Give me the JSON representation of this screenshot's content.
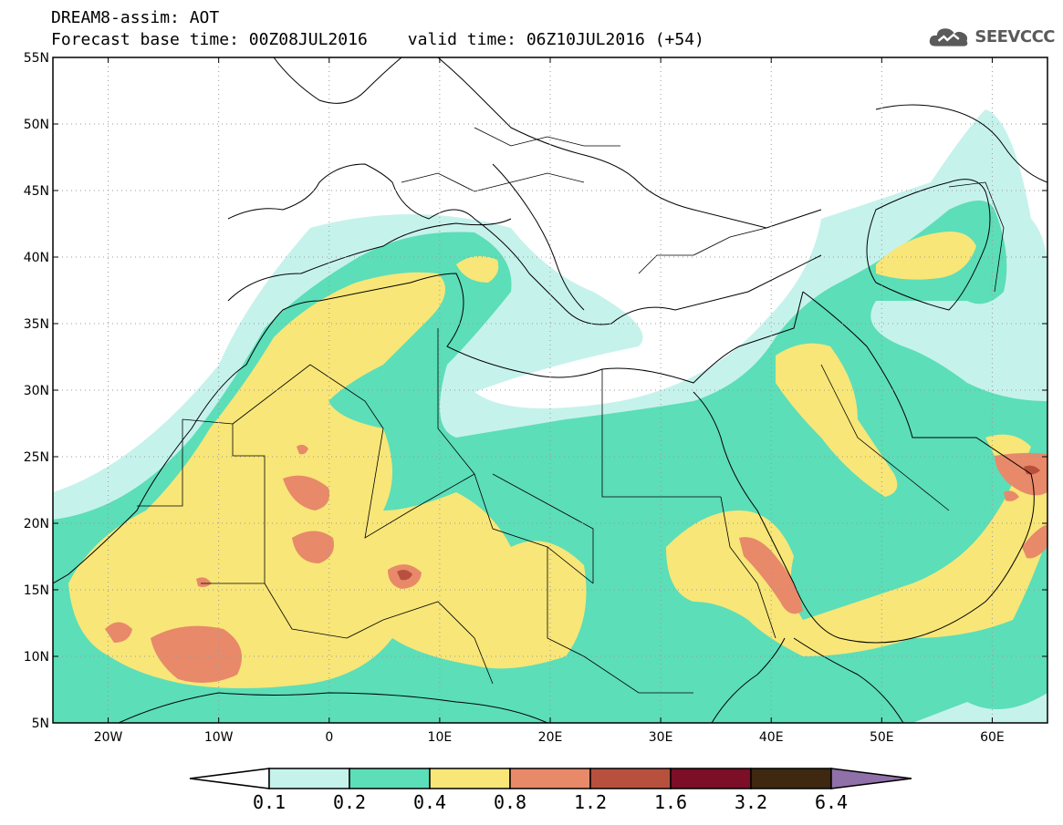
{
  "title": {
    "line1": "DREAM8-assim: AOT",
    "forecast_base": "Forecast base time: 00Z08JUL2016",
    "valid_time": "valid time: 06Z10JUL2016 (+54)"
  },
  "logo": {
    "text": "SEEVCCC",
    "icon": "cloud-icon",
    "color": "#5a5a5a"
  },
  "map": {
    "lon_range": [
      -25,
      65
    ],
    "lat_range": [
      5,
      55
    ],
    "lat_ticks": [
      {
        "value": 55,
        "label": "55N"
      },
      {
        "value": 50,
        "label": "50N"
      },
      {
        "value": 45,
        "label": "45N"
      },
      {
        "value": 40,
        "label": "40N"
      },
      {
        "value": 35,
        "label": "35N"
      },
      {
        "value": 30,
        "label": "30N"
      },
      {
        "value": 25,
        "label": "25N"
      },
      {
        "value": 20,
        "label": "20N"
      },
      {
        "value": 15,
        "label": "15N"
      },
      {
        "value": 10,
        "label": "10N"
      },
      {
        "value": 5,
        "label": "5N"
      }
    ],
    "lon_ticks": [
      {
        "value": -20,
        "label": "20W"
      },
      {
        "value": -10,
        "label": "10W"
      },
      {
        "value": 0,
        "label": "0"
      },
      {
        "value": 10,
        "label": "10E"
      },
      {
        "value": 20,
        "label": "20E"
      },
      {
        "value": 30,
        "label": "30E"
      },
      {
        "value": 40,
        "label": "40E"
      },
      {
        "value": 50,
        "label": "50E"
      },
      {
        "value": 60,
        "label": "60E"
      }
    ],
    "gridlines": true
  },
  "colorbar": {
    "labels": [
      "0.1",
      "0.2",
      "0.4",
      "0.8",
      "1.2",
      "1.6",
      "3.2",
      "6.4"
    ],
    "colors": [
      "#c6f2ec",
      "#5cdeb8",
      "#f8e678",
      "#e8896a",
      "#b8503e",
      "#7c0e28",
      "#3e2810"
    ],
    "under_color": "#ffffff",
    "over_color": "#9070a8"
  },
  "fill_colors": {
    "c1": "#c6f2ec",
    "c2": "#5cdeb8",
    "c3": "#f8e678",
    "c4": "#e8896a",
    "c5": "#b8503e"
  }
}
